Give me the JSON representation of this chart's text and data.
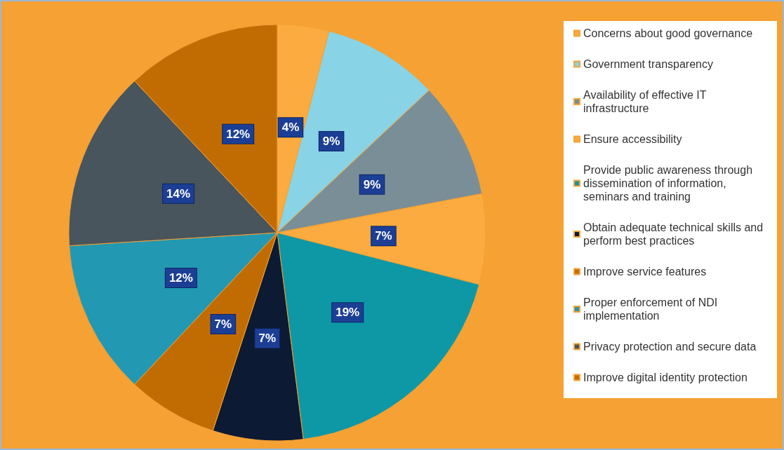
{
  "chart_data": {
    "type": "pie",
    "categories": [
      "Concerns about good governance",
      "Government transparency",
      "Availability of effective IT infrastructure",
      "Ensure accessibility",
      "Provide public awareness through dissemination of information, seminars and training",
      "Obtain adequate technical skills and perform best practices",
      "Improve service features",
      "Proper enforcement of NDI implementation",
      "Privacy protection and secure data",
      "Improve digital identity protection"
    ],
    "values": [
      4,
      9,
      9,
      7,
      19,
      7,
      7,
      12,
      14,
      12
    ],
    "value_labels": [
      "4%",
      "9%",
      "9%",
      "7%",
      "19%",
      "7%",
      "7%",
      "12%",
      "14%",
      "12%"
    ],
    "colors": [
      "#fbab3f",
      "#88d3e6",
      "#7a8e97",
      "#fbab3f",
      "#0e98a6",
      "#0c1a33",
      "#c16c03",
      "#2398b2",
      "#48555d",
      "#c16c03"
    ],
    "legend": "right"
  }
}
